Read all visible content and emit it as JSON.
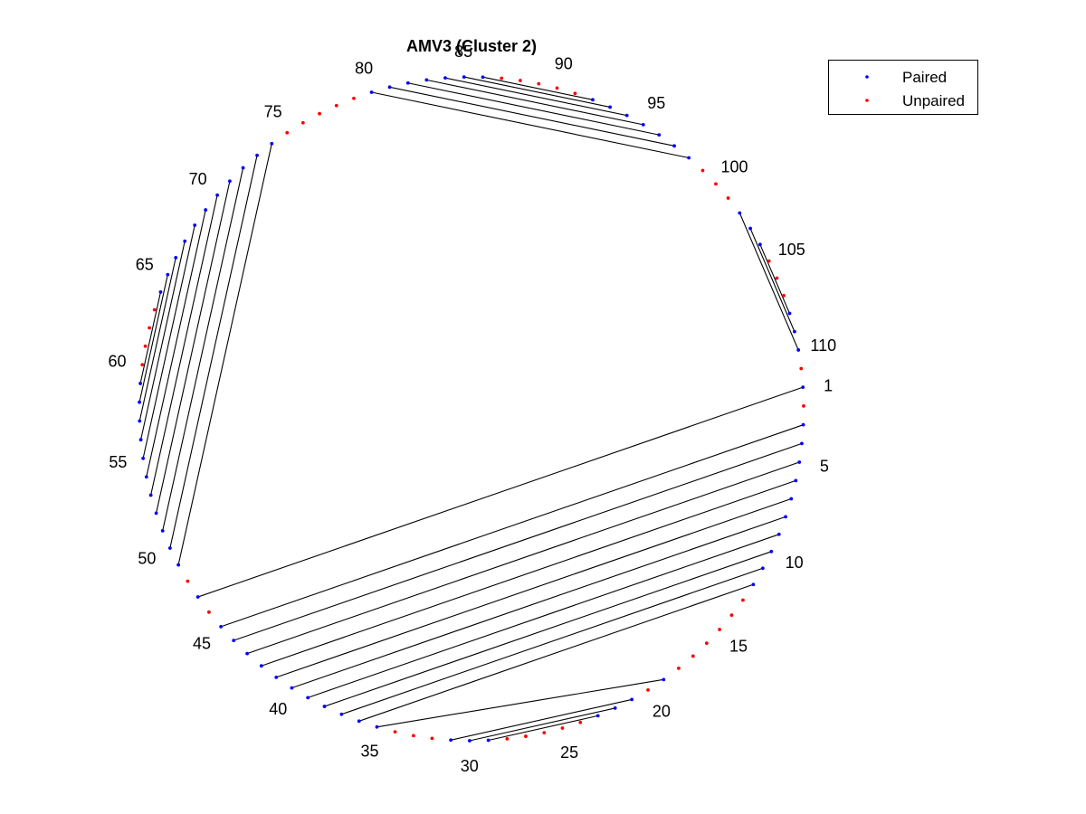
{
  "chart_data": {
    "type": "arc-diagram",
    "title": "AMV3 (Cluster 2)",
    "n_nucleotides": 111,
    "position_labels": [
      "1",
      "5",
      "10",
      "15",
      "20",
      "25",
      "30",
      "35",
      "40",
      "45",
      "50",
      "55",
      "60",
      "65",
      "70",
      "75",
      "80",
      "85",
      "90",
      "95",
      "100",
      "105",
      "110"
    ],
    "legend": {
      "placement": "top-right",
      "entries": [
        {
          "label": "Paired",
          "color": "#0000ff"
        },
        {
          "label": "Unpaired",
          "color": "#ff0000"
        }
      ]
    },
    "pairs": [
      [
        0,
        46
      ],
      [
        2,
        44
      ],
      [
        3,
        43
      ],
      [
        4,
        42
      ],
      [
        5,
        41
      ],
      [
        6,
        40
      ],
      [
        7,
        39
      ],
      [
        8,
        38
      ],
      [
        9,
        37
      ],
      [
        10,
        36
      ],
      [
        11,
        35
      ],
      [
        18,
        34
      ],
      [
        20,
        30
      ],
      [
        21,
        29
      ],
      [
        22,
        28
      ],
      [
        48,
        73
      ],
      [
        49,
        72
      ],
      [
        50,
        71
      ],
      [
        51,
        70
      ],
      [
        52,
        69
      ],
      [
        53,
        68
      ],
      [
        54,
        67
      ],
      [
        55,
        66
      ],
      [
        56,
        65
      ],
      [
        57,
        64
      ],
      [
        58,
        63
      ],
      [
        79,
        97
      ],
      [
        80,
        96
      ],
      [
        81,
        95
      ],
      [
        82,
        94
      ],
      [
        83,
        93
      ],
      [
        84,
        92
      ],
      [
        85,
        91
      ],
      [
        101,
        109
      ],
      [
        102,
        108
      ],
      [
        103,
        107
      ]
    ],
    "colors": {
      "paired": "#0000ff",
      "unpaired": "#ff0000",
      "arc": "#000000"
    }
  }
}
